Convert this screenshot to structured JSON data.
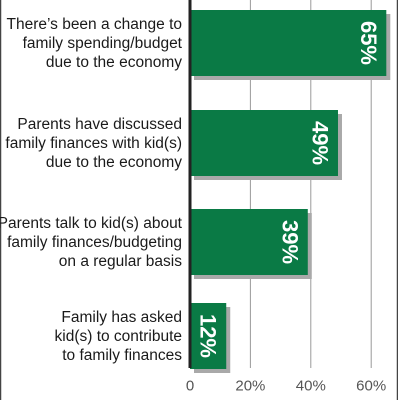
{
  "chart_data": {
    "type": "bar",
    "orientation": "horizontal",
    "categories": [
      [
        "There’s been a change to",
        "family spending/budget",
        "due to the economy"
      ],
      [
        "Parents have discussed",
        "family finances with kid(s)",
        "due to the economy"
      ],
      [
        "Parents talk to kid(s) about",
        "family finances/budgeting",
        "on a regular basis"
      ],
      [
        "Family has asked",
        "kid(s) to contribute",
        "to family finances"
      ]
    ],
    "values": [
      65,
      49,
      39,
      12
    ],
    "value_labels": [
      "65%",
      "49%",
      "39%",
      "12%"
    ],
    "xlim": [
      0,
      70
    ],
    "x_ticks": [
      0,
      20,
      40,
      60
    ],
    "x_tick_labels": [
      "0",
      "20%",
      "40%",
      "60%"
    ],
    "grid": true,
    "colors": {
      "bar": "#0a7a45",
      "bar_shadow": "#a9a9a9",
      "grid": "#9a9a9a",
      "axis": "#222222",
      "frame": "#444444"
    }
  }
}
